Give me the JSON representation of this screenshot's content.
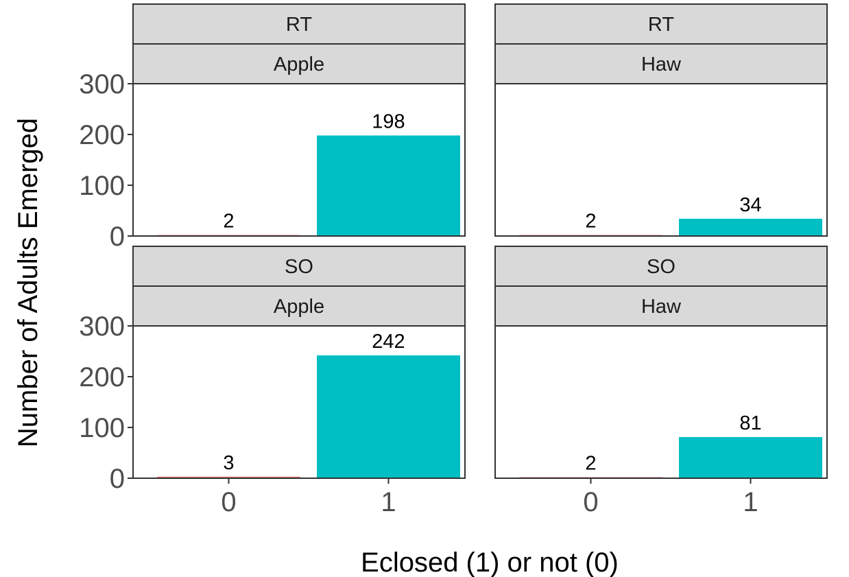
{
  "chart_data": {
    "type": "bar",
    "facet_rows": [
      "RT",
      "SO"
    ],
    "facet_cols": [
      "Apple",
      "Haw"
    ],
    "categories": [
      "0",
      "1"
    ],
    "xlabel": "Eclosed (1) or not (0)",
    "ylabel": "Number of Adults Emerged",
    "ylim": [
      0,
      300
    ],
    "yticks": [
      "0",
      "100",
      "200",
      "300"
    ],
    "colors": {
      "0": "#f8766d",
      "1": "#00bfc4"
    },
    "legend": "none",
    "grid": false,
    "panels": [
      {
        "row": "RT",
        "col": "Apple",
        "values": [
          2,
          198
        ],
        "labels": [
          "2",
          "198"
        ]
      },
      {
        "row": "RT",
        "col": "Haw",
        "values": [
          2,
          34
        ],
        "labels": [
          "2",
          "34"
        ]
      },
      {
        "row": "SO",
        "col": "Apple",
        "values": [
          3,
          242
        ],
        "labels": [
          "3",
          "242"
        ]
      },
      {
        "row": "SO",
        "col": "Haw",
        "values": [
          2,
          81
        ],
        "labels": [
          "2",
          "81"
        ]
      }
    ]
  }
}
